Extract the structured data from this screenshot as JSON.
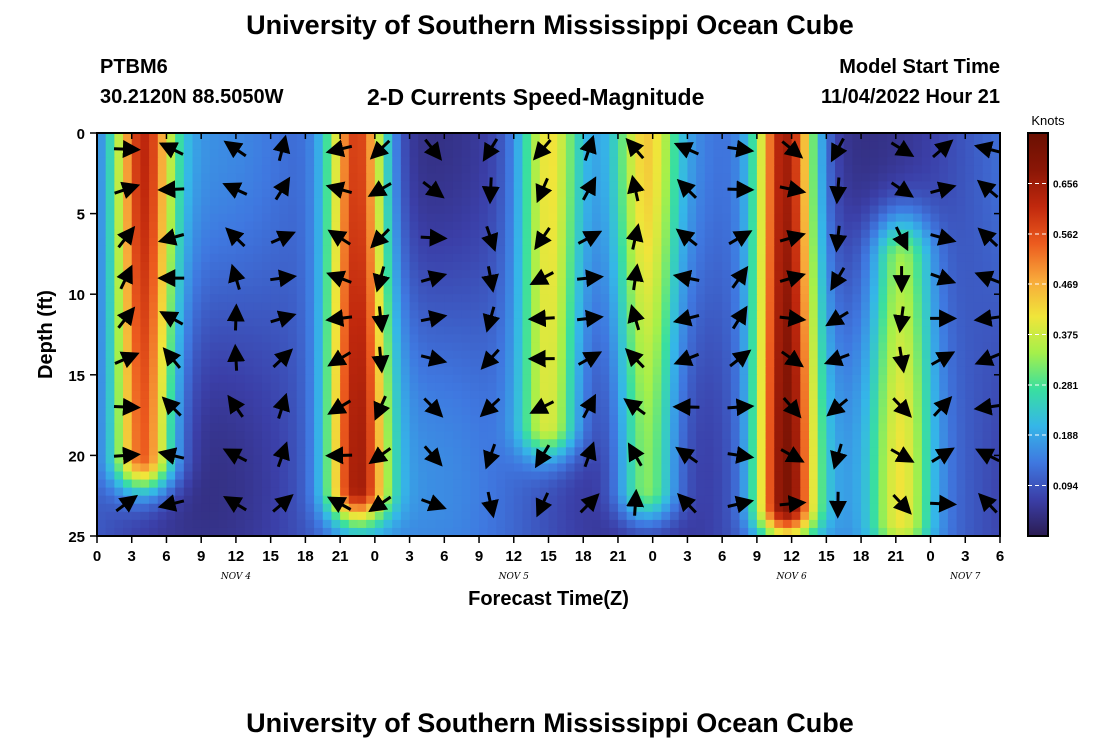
{
  "page": {
    "title": "University of Southern Mississippi Ocean Cube",
    "bottom_title": "University of Southern Mississippi Ocean Cube",
    "station_id": "PTBM6",
    "coordinates": "30.2120N  88.5050W",
    "subtitle": "2-D Currents Speed-Magnitude",
    "model_start_label": "Model Start Time",
    "model_start_value": "11/04/2022 Hour 21"
  },
  "chart_data": {
    "type": "heatmap",
    "title": "2-D Currents Speed-Magnitude",
    "xlabel": "Forecast Time(Z)",
    "ylabel": "Depth (ft)",
    "x_tick_labels": [
      "0",
      "3",
      "6",
      "9",
      "12",
      "15",
      "18",
      "21",
      "0",
      "3",
      "6",
      "9",
      "12",
      "15",
      "18",
      "21",
      "0",
      "3",
      "6",
      "9",
      "12",
      "15",
      "18",
      "21",
      "0",
      "3",
      "6"
    ],
    "x_hours": [
      0,
      3,
      6,
      9,
      12,
      15,
      18,
      21,
      24,
      27,
      30,
      33,
      36,
      39,
      42,
      45,
      48,
      51,
      54,
      57,
      60,
      63,
      66,
      69,
      72,
      75,
      78
    ],
    "x_range_hours": [
      0,
      78
    ],
    "date_labels": [
      {
        "label": "NOV 4",
        "hour": 12
      },
      {
        "label": "NOV 5",
        "hour": 36
      },
      {
        "label": "NOV 6",
        "hour": 60
      },
      {
        "label": "NOV 7",
        "hour": 75
      }
    ],
    "y_ticks": [
      0,
      5,
      10,
      15,
      20,
      25
    ],
    "y_range_ft": [
      0,
      25
    ],
    "y_inverted": true,
    "colorbar": {
      "label": "Knots",
      "ticks": [
        0.094,
        0.188,
        0.281,
        0.375,
        0.469,
        0.562,
        0.656
      ],
      "range": [
        0.0,
        0.75
      ],
      "colors": [
        "#2b1c52",
        "#3b3fa8",
        "#3f78e0",
        "#35b6e8",
        "#39dfa0",
        "#a5f04a",
        "#f0e53a",
        "#f8a83a",
        "#ec5a1e",
        "#c0280d",
        "#8a1606",
        "#6a1002"
      ]
    },
    "speed_ridges": [
      {
        "hour": 4,
        "depth_top": 0,
        "depth_bottom": 20,
        "speed": 0.58
      },
      {
        "hour": 22.5,
        "depth_top": 0,
        "depth_bottom": 22,
        "speed": 0.62
      },
      {
        "hour": 39,
        "depth_top": 0,
        "depth_bottom": 18,
        "speed": 0.4
      },
      {
        "hour": 47.5,
        "depth_top": 0,
        "depth_bottom": 22,
        "speed": 0.38
      },
      {
        "hour": 59.5,
        "depth_top": 0,
        "depth_bottom": 23,
        "speed": 0.68
      },
      {
        "hour": 69.5,
        "depth_top": 8,
        "depth_bottom": 24,
        "speed": 0.36
      }
    ],
    "vector_columns_hours": [
      2.5,
      6.5,
      12,
      16,
      21,
      24.5,
      29,
      34,
      38.5,
      42.5,
      46.5,
      51,
      55.5,
      60,
      64,
      69.5,
      73,
      77
    ],
    "vector_rows_ft": [
      1,
      3.5,
      6.5,
      9,
      11.5,
      14,
      17,
      20,
      23
    ]
  }
}
